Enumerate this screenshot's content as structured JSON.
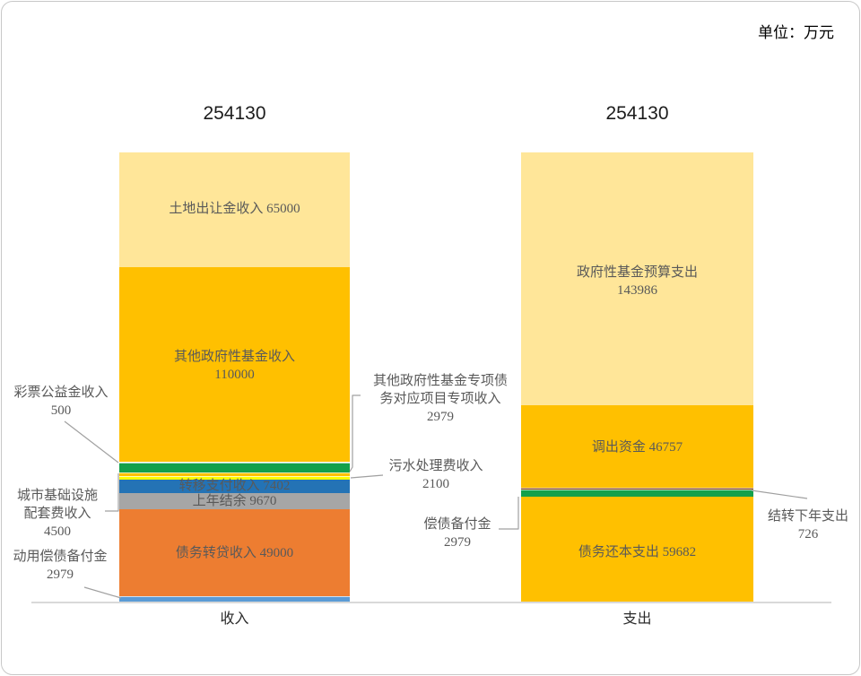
{
  "unit_label": "单位：万元",
  "chart_data": {
    "type": "bar",
    "subtype": "stacked-column",
    "unit": "万元",
    "categories": [
      "收入",
      "支出"
    ],
    "totals": [
      "254130",
      "254130"
    ],
    "legend": "none",
    "gridlines": "off",
    "columns": [
      {
        "category": "收入",
        "total": 254130,
        "segments": [
          {
            "name": "土地出让金收入",
            "value": 65000,
            "color": "#FFE699",
            "text_in_bar": [
              "土地出让金收入 65000"
            ]
          },
          {
            "name": "其他政府性基金收入",
            "value": 110000,
            "color": "#FFC000",
            "text_in_bar": [
              "其他政府性基金收入",
              "110000"
            ]
          },
          {
            "name": "彩票公益金收入",
            "value": 500,
            "color": "#F3EDD8",
            "text_in_bar": []
          },
          {
            "name": "其他政府性基金专项债务对应项目专项收入",
            "value": 2979,
            "color": "#14A04B",
            "text_in_bar": []
          },
          {
            "name": "城市基础设施配套费收入",
            "value": 4500,
            "color": "#FFC000",
            "text_in_bar": []
          },
          {
            "name": "污水处理费收入",
            "value": 2100,
            "color": "#FFFF00",
            "text_in_bar": []
          },
          {
            "name": "转移支付收入",
            "value": 7402,
            "color": "#2473B5",
            "text_in_bar": [
              "转移支付收入 7402"
            ]
          },
          {
            "name": "上年结余",
            "value": 9670,
            "color": "#A6A6A6",
            "text_in_bar": [
              "上年结余 9670"
            ]
          },
          {
            "name": "债务转贷收入",
            "value": 49000,
            "color": "#ED7D31",
            "text_in_bar": [
              "债务转贷收入 49000"
            ]
          },
          {
            "name": "动用偿债备付金",
            "value": 2979,
            "color": "#5B9BD5",
            "text_in_bar": []
          }
        ]
      },
      {
        "category": "支出",
        "total": 254130,
        "segments": [
          {
            "name": "政府性基金预算支出",
            "value": 143986,
            "color": "#FFE699",
            "text_in_bar": [
              "政府性基金预算支出",
              "143986"
            ]
          },
          {
            "name": "调出资金",
            "value": 46757,
            "color": "#FFC000",
            "text_in_bar": [
              "调出资金 46757"
            ]
          },
          {
            "name": "结转下年支出",
            "value": 726,
            "color": "#843C0C",
            "text_in_bar": []
          },
          {
            "name": "偿债备付金",
            "value": 2979,
            "color": "#14A04B",
            "text_in_bar": []
          },
          {
            "name": "债务还本支出",
            "value": 59682,
            "color": "#FFC000",
            "text_in_bar": [
              "债务还本支出 59682"
            ]
          }
        ]
      }
    ]
  },
  "callouts": {
    "lottery": {
      "lines": [
        "彩票公益金收入",
        "500"
      ]
    },
    "infra": {
      "lines": [
        "城市基础设施",
        "配套费收入",
        "4500"
      ]
    },
    "reserve_use": {
      "lines": [
        "动用偿债备付金",
        "2979"
      ]
    },
    "special_debt": {
      "lines": [
        "其他政府性基金专项债",
        "务对应项目专项收入",
        "2979"
      ]
    },
    "sewage": {
      "lines": [
        "污水处理费收入",
        "2100"
      ]
    },
    "repay_reserve": {
      "lines": [
        "偿债备付金",
        "2979"
      ]
    },
    "carryover": {
      "lines": [
        "结转下年支出",
        "726"
      ]
    }
  }
}
